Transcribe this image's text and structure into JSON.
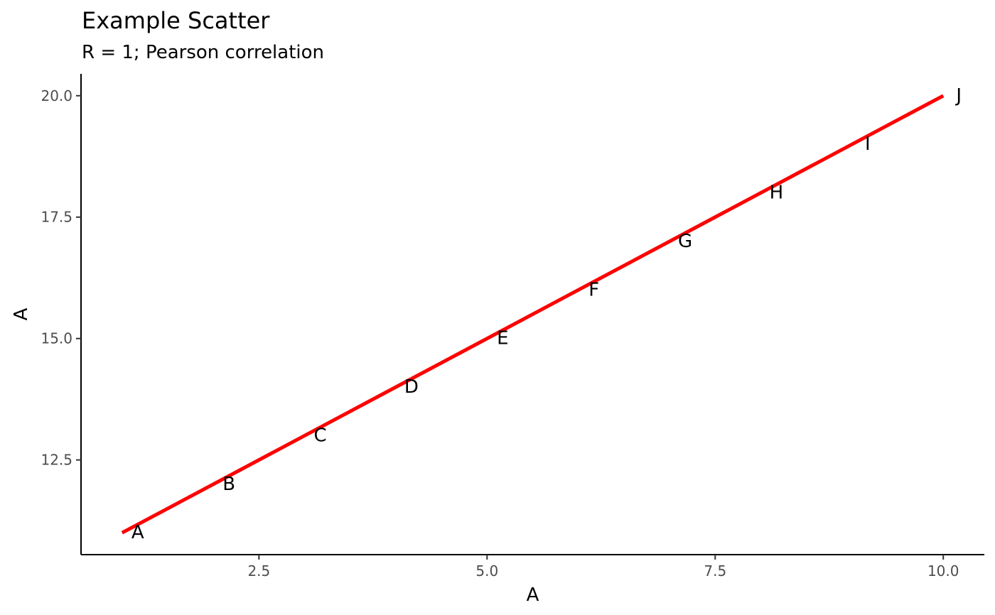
{
  "chart_data": {
    "type": "scatter",
    "title": "Example Scatter",
    "subtitle": "R = 1; Pearson correlation",
    "xlabel": "A",
    "ylabel": "A",
    "xlim": [
      0.55,
      10.45
    ],
    "ylim": [
      10.55,
      20.45
    ],
    "xticks": [
      2.5,
      5.0,
      7.5,
      10.0
    ],
    "xtick_labels": [
      "2.5",
      "5.0",
      "7.5",
      "10.0"
    ],
    "yticks": [
      12.5,
      15.0,
      17.5,
      20.0
    ],
    "ytick_labels": [
      "12.5",
      "15.0",
      "17.5",
      "20.0"
    ],
    "grid": false,
    "points": [
      {
        "label": "A",
        "x": 1,
        "y": 11
      },
      {
        "label": "B",
        "x": 2,
        "y": 12
      },
      {
        "label": "C",
        "x": 3,
        "y": 13
      },
      {
        "label": "D",
        "x": 4,
        "y": 14
      },
      {
        "label": "E",
        "x": 5,
        "y": 15
      },
      {
        "label": "F",
        "x": 6,
        "y": 16
      },
      {
        "label": "G",
        "x": 7,
        "y": 17
      },
      {
        "label": "H",
        "x": 8,
        "y": 18
      },
      {
        "label": "I",
        "x": 9,
        "y": 19
      },
      {
        "label": "J",
        "x": 10,
        "y": 20
      }
    ],
    "fit_line": {
      "x": [
        1,
        10
      ],
      "y": [
        11,
        20
      ],
      "color": "#ff0000"
    }
  }
}
